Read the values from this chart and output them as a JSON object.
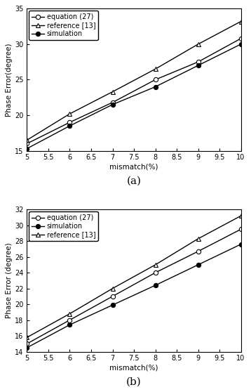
{
  "x": [
    5,
    6,
    7,
    8,
    9,
    10
  ],
  "subplot_a": {
    "equation27": [
      16.0,
      19.0,
      21.8,
      25.0,
      27.5,
      30.8
    ],
    "reference13": [
      16.5,
      20.2,
      23.3,
      26.5,
      30.0,
      33.2
    ],
    "simulation": [
      15.3,
      18.5,
      21.5,
      24.0,
      27.0,
      30.0
    ],
    "ylim": [
      15,
      35
    ],
    "yticks": [
      15,
      20,
      25,
      30,
      35
    ],
    "ylabel": "Phase Error(degree)",
    "xlabel": "mismatch(%)",
    "caption": "(a)"
  },
  "subplot_b": {
    "equation27": [
      15.0,
      18.0,
      21.0,
      24.0,
      26.7,
      29.5
    ],
    "reference13": [
      15.8,
      18.8,
      22.0,
      25.0,
      28.3,
      31.2
    ],
    "simulation": [
      14.5,
      17.4,
      19.9,
      22.4,
      25.0,
      27.6
    ],
    "ylim": [
      14,
      32
    ],
    "yticks": [
      14,
      16,
      18,
      20,
      22,
      24,
      26,
      28,
      30,
      32
    ],
    "ylabel": "Phase Error (degree)",
    "xlabel": "mismatch(%)",
    "caption": "(b)"
  },
  "xticks": [
    5,
    5.5,
    6,
    6.5,
    7,
    7.5,
    8,
    8.5,
    9,
    9.5,
    10
  ],
  "xticklabels": [
    "5",
    "5.5",
    "6",
    "6.5",
    "7",
    "7.5",
    "8",
    "8.5",
    "9",
    "9.5",
    "10"
  ],
  "xlim": [
    5,
    10
  ],
  "tick_fontsize": 7,
  "label_fontsize": 7.5,
  "legend_fontsize": 7,
  "linewidth": 1.0,
  "markersize": 4.5
}
